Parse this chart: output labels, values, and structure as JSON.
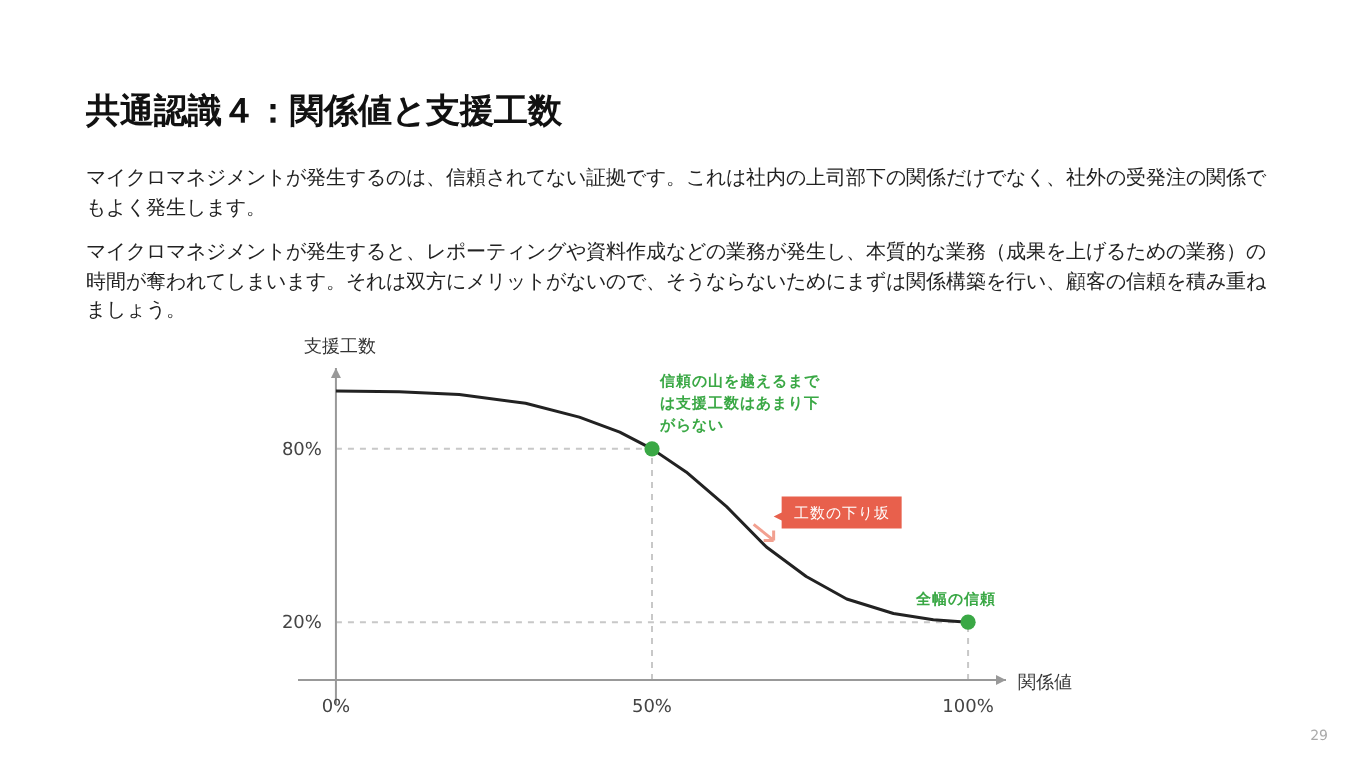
{
  "chart_data": {
    "type": "line",
    "title": "共通認識４：関係値と支援工数",
    "subtitle": "マイクロマネジメントが発生するのは、信頼されてない証拠です。これは社内の上司部下の関係だけでなく、社外の受発注の関係でもよく発生します。",
    "xlabel": "関係値",
    "ylabel": "支援工数",
    "xlim": [
      -6,
      106
    ],
    "ylim": [
      -10,
      108
    ],
    "xticks": [
      {
        "value": 0,
        "label": "0%"
      },
      {
        "value": 50,
        "label": "50%"
      },
      {
        "value": 100,
        "label": "100%"
      }
    ],
    "yticks": [
      {
        "value": 20,
        "label": "20%"
      },
      {
        "value": 80,
        "label": "80%"
      }
    ],
    "grid": false,
    "series": [
      {
        "type": "line",
        "color": "#222222",
        "marker": "none",
        "line_style": "solid",
        "x": [
          0,
          10,
          19.5,
          30,
          38.5,
          44.9,
          50,
          55.4,
          61.8,
          68.1,
          74.4,
          80.8,
          88.2,
          94.5,
          100
        ],
        "values": [
          100,
          99.8,
          98.8,
          95.8,
          91,
          85.8,
          80,
          72,
          60,
          46,
          35.8,
          28,
          23,
          20.8,
          20
        ]
      },
      {
        "type": "scatter",
        "color": "#3aa845",
        "marker": "circle",
        "x": [
          50,
          100
        ],
        "values": [
          80,
          20
        ]
      }
    ],
    "ref_lines": [
      {
        "axis": "y",
        "value": 80,
        "color": "#c8c8c8",
        "line_style": "dashed"
      },
      {
        "axis": "x",
        "value": 50,
        "color": "#c8c8c8",
        "line_style": "dashed"
      },
      {
        "axis": "y",
        "value": 20,
        "color": "#c8c8c8",
        "line_style": "dashed"
      },
      {
        "axis": "x",
        "value": 100,
        "color": "#c8c8c8",
        "line_style": "dashed"
      }
    ],
    "annotations": [
      {
        "text": "信頼の山を越えるまでは支援工数はあまり下がらない",
        "x": 50,
        "y": 80
      },
      {
        "text": "全幅の信頼",
        "x": 100,
        "y": 20
      },
      "工数の下り坂",
      "マイクロマネジメントが発生すると、レポーティングや資料作成などの業務が発生し、本質的な業務（成果を上げるための業務）の時間が奪われてしまいます。それは双方にメリットがないので、そうならないためにまずは関係構築を行い、顧客の信頼を積み重ねましょう。",
      "29"
    ]
  }
}
